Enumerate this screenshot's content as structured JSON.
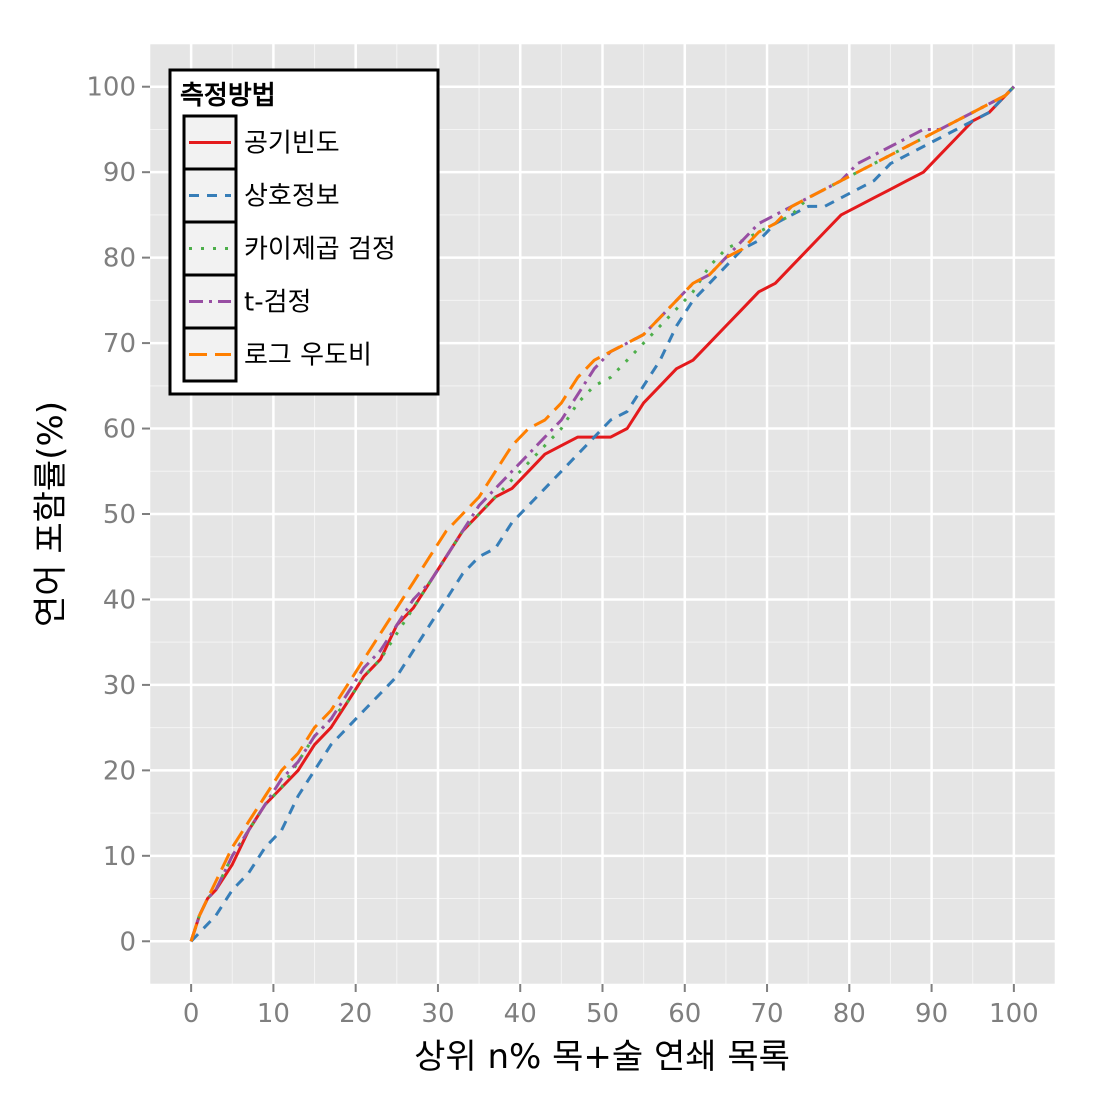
{
  "chart_data": {
    "type": "line",
    "title": "",
    "xlabel": "상위 n% 목+술 연쇄 목록",
    "ylabel": "연어 포함률(%)",
    "xlim": [
      -5,
      105
    ],
    "ylim": [
      -5,
      105
    ],
    "x_ticks": [
      0,
      10,
      20,
      30,
      40,
      50,
      60,
      70,
      80,
      90,
      100
    ],
    "y_ticks": [
      0,
      10,
      20,
      30,
      40,
      50,
      60,
      70,
      80,
      90,
      100
    ],
    "grid": true,
    "legend": {
      "title": "측정방법",
      "position": "top-left"
    },
    "series": [
      {
        "name": "공기빈도",
        "color": "#e41a1c",
        "dash": "",
        "x": [
          0,
          1,
          2,
          3,
          5,
          7,
          9,
          11,
          13,
          15,
          17,
          19,
          21,
          23,
          25,
          27,
          29,
          31,
          33,
          35,
          37,
          39,
          41,
          43,
          45,
          47,
          49,
          51,
          53,
          55,
          57,
          59,
          61,
          63,
          65,
          67,
          69,
          71,
          73,
          75,
          77,
          79,
          81,
          83,
          85,
          87,
          89,
          91,
          93,
          95,
          97,
          99,
          100
        ],
        "y": [
          0,
          3,
          5,
          6,
          9,
          13,
          16,
          18,
          20,
          23,
          25,
          28,
          31,
          33,
          37,
          39,
          42,
          45,
          48,
          50,
          52,
          53,
          55,
          57,
          58,
          59,
          59,
          59,
          60,
          63,
          65,
          67,
          68,
          70,
          72,
          74,
          76,
          77,
          79,
          81,
          83,
          85,
          86,
          87,
          88,
          89,
          90,
          92,
          94,
          96,
          97,
          99,
          100
        ]
      },
      {
        "name": "상호정보",
        "color": "#377eb8",
        "dash": "10,8",
        "x": [
          0,
          1,
          2,
          3,
          5,
          7,
          9,
          11,
          13,
          15,
          17,
          19,
          21,
          23,
          25,
          27,
          29,
          31,
          33,
          35,
          37,
          39,
          41,
          43,
          45,
          47,
          49,
          51,
          53,
          55,
          57,
          59,
          61,
          63,
          65,
          67,
          69,
          71,
          73,
          75,
          77,
          79,
          81,
          83,
          85,
          87,
          89,
          91,
          93,
          95,
          97,
          99,
          100
        ],
        "y": [
          0,
          1,
          2,
          3,
          6,
          8,
          11,
          13,
          17,
          20,
          23,
          25,
          27,
          29,
          31,
          34,
          37,
          40,
          43,
          45,
          46,
          49,
          51,
          53,
          55,
          57,
          59,
          61,
          62,
          65,
          68,
          72,
          75,
          77,
          79,
          81,
          82,
          84,
          85,
          86,
          86,
          87,
          88,
          89,
          91,
          92,
          93,
          94,
          95,
          96,
          97,
          99,
          100
        ]
      },
      {
        "name": "카이제곱 검정",
        "color": "#4daf4a",
        "dash": "3,9",
        "x": [
          0,
          1,
          2,
          3,
          5,
          7,
          9,
          11,
          13,
          15,
          17,
          19,
          21,
          23,
          25,
          27,
          29,
          31,
          33,
          35,
          37,
          39,
          41,
          43,
          45,
          47,
          49,
          51,
          53,
          55,
          57,
          59,
          61,
          63,
          65,
          67,
          69,
          71,
          73,
          75,
          77,
          79,
          81,
          83,
          85,
          87,
          89,
          91,
          93,
          95,
          97,
          99,
          100
        ],
        "y": [
          0,
          3,
          5,
          6,
          10,
          13,
          16,
          18,
          21,
          24,
          26,
          28,
          31,
          33,
          36,
          39,
          42,
          45,
          48,
          50,
          52,
          54,
          56,
          58,
          60,
          63,
          65,
          66,
          68,
          70,
          72,
          74,
          76,
          79,
          81,
          82,
          83,
          84,
          85,
          87,
          88,
          89,
          90,
          91,
          92,
          93,
          94,
          95,
          96,
          97,
          98,
          99,
          100
        ]
      },
      {
        "name": "t-검정",
        "color": "#984ea3",
        "dash": "14,6,3,6",
        "x": [
          0,
          1,
          2,
          3,
          5,
          7,
          9,
          11,
          13,
          15,
          17,
          19,
          21,
          23,
          25,
          27,
          29,
          31,
          33,
          35,
          37,
          39,
          41,
          43,
          45,
          47,
          49,
          51,
          53,
          55,
          57,
          59,
          61,
          63,
          65,
          67,
          69,
          71,
          73,
          75,
          77,
          79,
          81,
          83,
          85,
          87,
          89,
          91,
          93,
          95,
          97,
          99,
          100
        ],
        "y": [
          0,
          3,
          5,
          6,
          10,
          13,
          16,
          19,
          21,
          24,
          26,
          29,
          32,
          34,
          37,
          40,
          42,
          45,
          48,
          51,
          53,
          55,
          57,
          59,
          61,
          64,
          67,
          69,
          70,
          71,
          73,
          75,
          77,
          78,
          80,
          82,
          84,
          85,
          86,
          87,
          88,
          89,
          91,
          92,
          93,
          94,
          95,
          95,
          96,
          97,
          98,
          99,
          100
        ]
      },
      {
        "name": "로그 우도비",
        "color": "#ff7f00",
        "dash": "18,8",
        "x": [
          0,
          1,
          2,
          3,
          5,
          7,
          9,
          11,
          13,
          15,
          17,
          19,
          21,
          23,
          25,
          27,
          29,
          31,
          33,
          35,
          37,
          39,
          41,
          43,
          45,
          47,
          49,
          51,
          53,
          55,
          57,
          59,
          61,
          63,
          65,
          67,
          69,
          71,
          73,
          75,
          77,
          79,
          81,
          83,
          85,
          87,
          89,
          91,
          93,
          95,
          97,
          99,
          100
        ],
        "y": [
          0,
          3,
          5,
          7,
          11,
          14,
          17,
          20,
          22,
          25,
          27,
          30,
          33,
          36,
          39,
          42,
          45,
          48,
          50,
          52,
          55,
          58,
          60,
          61,
          63,
          66,
          68,
          69,
          70,
          71,
          73,
          75,
          77,
          78,
          80,
          81,
          83,
          84,
          86,
          87,
          88,
          89,
          90,
          91,
          92,
          93,
          94,
          95,
          96,
          97,
          98,
          99,
          100
        ]
      }
    ]
  }
}
